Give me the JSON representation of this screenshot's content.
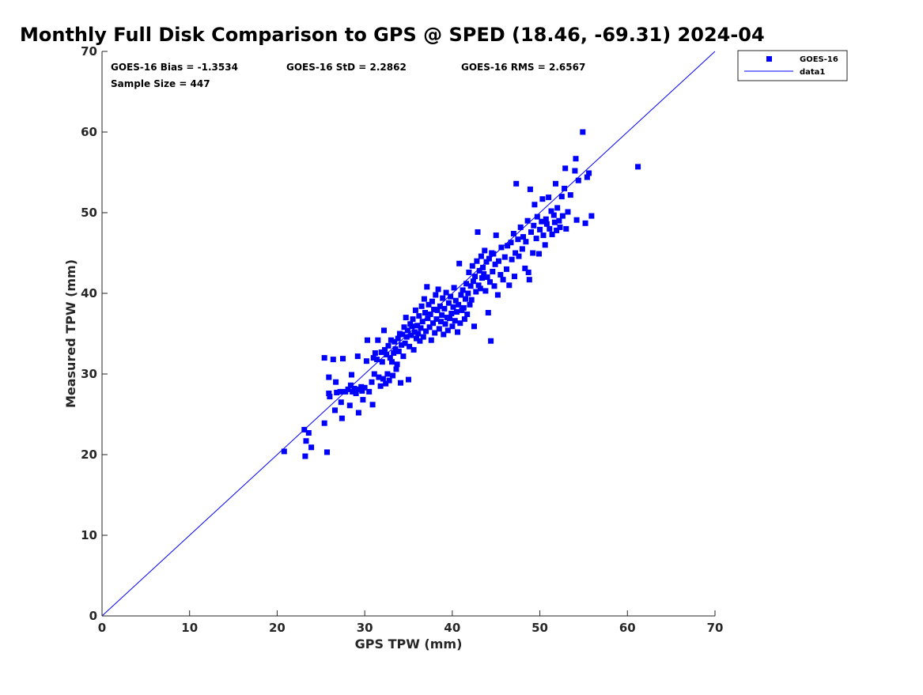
{
  "chart_data": {
    "type": "scatter",
    "title": "Monthly Full Disk Comparison to GPS @ SPED (18.46, -69.31) 2024-04",
    "xlabel": "GPS TPW (mm)",
    "ylabel": "Measured TPW (mm)",
    "xlim": [
      0,
      70
    ],
    "ylim": [
      0,
      70
    ],
    "xticks": [
      0,
      10,
      20,
      30,
      40,
      50,
      60,
      70
    ],
    "yticks": [
      0,
      10,
      20,
      30,
      40,
      50,
      60,
      70
    ],
    "grid": false,
    "legend_position": "top-right outside",
    "annotations": {
      "bias": "GOES-16 Bias = -1.3534",
      "std": "GOES-16 StD = 2.2862",
      "rms": "GOES-16 RMS = 2.6567",
      "sample": "Sample Size = 447"
    },
    "series": [
      {
        "name": "GOES-16",
        "kind": "scatter",
        "marker": "square",
        "color": "#0000ff",
        "points": [
          [
            20.8,
            20.4
          ],
          [
            23.2,
            19.8
          ],
          [
            23.3,
            21.7
          ],
          [
            23.6,
            22.7
          ],
          [
            23.9,
            20.9
          ],
          [
            23.1,
            23.1
          ],
          [
            25.7,
            20.3
          ],
          [
            25.4,
            23.9
          ],
          [
            25.9,
            27.6
          ],
          [
            25.9,
            29.6
          ],
          [
            26.0,
            27.2
          ],
          [
            26.4,
            31.8
          ],
          [
            25.4,
            32.0
          ],
          [
            26.6,
            25.5
          ],
          [
            26.7,
            29.0
          ],
          [
            26.8,
            27.7
          ],
          [
            27.2,
            27.8
          ],
          [
            27.3,
            26.5
          ],
          [
            27.4,
            24.5
          ],
          [
            27.5,
            31.9
          ],
          [
            27.8,
            27.8
          ],
          [
            28.1,
            28.1
          ],
          [
            28.3,
            26.1
          ],
          [
            28.4,
            28.6
          ],
          [
            28.5,
            29.9
          ],
          [
            28.6,
            27.8
          ],
          [
            28.8,
            28.2
          ],
          [
            29.0,
            27.6
          ],
          [
            29.2,
            32.2
          ],
          [
            29.3,
            25.2
          ],
          [
            29.4,
            28.1
          ],
          [
            29.6,
            28.4
          ],
          [
            29.7,
            27.9
          ],
          [
            29.8,
            26.8
          ],
          [
            30.0,
            28.3
          ],
          [
            30.2,
            31.6
          ],
          [
            30.3,
            34.2
          ],
          [
            30.5,
            27.8
          ],
          [
            30.8,
            29.0
          ],
          [
            30.9,
            26.2
          ],
          [
            31.0,
            32.0
          ],
          [
            31.1,
            30.0
          ],
          [
            31.2,
            32.6
          ],
          [
            31.4,
            31.8
          ],
          [
            31.5,
            34.2
          ],
          [
            31.6,
            29.6
          ],
          [
            31.8,
            28.5
          ],
          [
            31.9,
            32.7
          ],
          [
            32.0,
            31.5
          ],
          [
            32.1,
            29.4
          ],
          [
            32.2,
            35.4
          ],
          [
            32.3,
            33.0
          ],
          [
            32.4,
            28.8
          ],
          [
            32.5,
            32.4
          ],
          [
            32.6,
            30.0
          ],
          [
            32.7,
            33.5
          ],
          [
            32.8,
            29.2
          ],
          [
            32.9,
            32.0
          ],
          [
            33.0,
            34.2
          ],
          [
            33.1,
            31.5
          ],
          [
            33.2,
            29.8
          ],
          [
            33.3,
            32.6
          ],
          [
            33.4,
            34.0
          ],
          [
            33.5,
            33.1
          ],
          [
            33.6,
            30.6
          ],
          [
            33.7,
            31.2
          ],
          [
            33.8,
            34.4
          ],
          [
            33.9,
            32.8
          ],
          [
            34.0,
            35.0
          ],
          [
            34.1,
            28.9
          ],
          [
            34.2,
            33.6
          ],
          [
            34.3,
            34.9
          ],
          [
            34.4,
            32.2
          ],
          [
            34.5,
            35.8
          ],
          [
            34.6,
            33.8
          ],
          [
            34.7,
            37.0
          ],
          [
            34.8,
            34.6
          ],
          [
            34.9,
            35.4
          ],
          [
            35.0,
            29.3
          ],
          [
            35.1,
            33.4
          ],
          [
            35.2,
            36.2
          ],
          [
            35.3,
            34.8
          ],
          [
            35.4,
            35.9
          ],
          [
            35.5,
            36.8
          ],
          [
            35.6,
            33.0
          ],
          [
            35.7,
            35.2
          ],
          [
            35.8,
            37.9
          ],
          [
            35.9,
            34.4
          ],
          [
            36.0,
            36.0
          ],
          [
            36.1,
            35.0
          ],
          [
            36.2,
            37.2
          ],
          [
            36.3,
            34.1
          ],
          [
            36.4,
            35.7
          ],
          [
            36.5,
            38.4
          ],
          [
            36.6,
            36.5
          ],
          [
            36.7,
            34.6
          ],
          [
            36.8,
            39.3
          ],
          [
            36.9,
            37.6
          ],
          [
            37.0,
            35.3
          ],
          [
            37.1,
            40.8
          ],
          [
            37.2,
            36.9
          ],
          [
            37.3,
            38.6
          ],
          [
            37.4,
            35.8
          ],
          [
            37.5,
            37.4
          ],
          [
            37.6,
            34.2
          ],
          [
            37.7,
            39.0
          ],
          [
            37.8,
            36.3
          ],
          [
            37.9,
            38.0
          ],
          [
            38.0,
            35.1
          ],
          [
            38.1,
            39.8
          ],
          [
            38.2,
            36.8
          ],
          [
            38.3,
            37.9
          ],
          [
            38.4,
            40.5
          ],
          [
            38.5,
            35.6
          ],
          [
            38.6,
            38.4
          ],
          [
            38.7,
            36.5
          ],
          [
            38.8,
            37.3
          ],
          [
            38.9,
            39.4
          ],
          [
            39.0,
            34.9
          ],
          [
            39.1,
            38.1
          ],
          [
            39.2,
            36.2
          ],
          [
            39.3,
            40.1
          ],
          [
            39.4,
            37.0
          ],
          [
            39.5,
            35.4
          ],
          [
            39.6,
            38.8
          ],
          [
            39.7,
            36.9
          ],
          [
            39.8,
            39.6
          ],
          [
            39.9,
            37.5
          ],
          [
            40.0,
            35.9
          ],
          [
            40.1,
            38.3
          ],
          [
            40.2,
            40.7
          ],
          [
            40.3,
            36.6
          ],
          [
            40.4,
            39.1
          ],
          [
            40.5,
            37.7
          ],
          [
            40.6,
            35.2
          ],
          [
            40.7,
            38.6
          ],
          [
            40.8,
            43.7
          ],
          [
            40.9,
            36.3
          ],
          [
            41.0,
            39.8
          ],
          [
            41.1,
            37.9
          ],
          [
            41.2,
            40.4
          ],
          [
            41.3,
            38.2
          ],
          [
            41.4,
            36.8
          ],
          [
            41.5,
            39.3
          ],
          [
            41.6,
            41.2
          ],
          [
            41.7,
            37.4
          ],
          [
            41.8,
            40.0
          ],
          [
            41.9,
            42.6
          ],
          [
            42.0,
            38.6
          ],
          [
            42.1,
            40.9
          ],
          [
            42.2,
            39.2
          ],
          [
            42.3,
            43.4
          ],
          [
            42.4,
            41.5
          ],
          [
            42.5,
            35.9
          ],
          [
            42.6,
            42.1
          ],
          [
            42.7,
            40.2
          ],
          [
            42.8,
            44.0
          ],
          [
            42.9,
            47.6
          ],
          [
            43.0,
            41.0
          ],
          [
            43.1,
            42.8
          ],
          [
            43.2,
            40.6
          ],
          [
            43.3,
            44.6
          ],
          [
            43.4,
            41.9
          ],
          [
            43.5,
            43.2
          ],
          [
            43.6,
            42.4
          ],
          [
            43.7,
            45.3
          ],
          [
            43.8,
            40.3
          ],
          [
            43.9,
            43.9
          ],
          [
            44.0,
            42.0
          ],
          [
            44.1,
            37.6
          ],
          [
            44.2,
            44.3
          ],
          [
            44.3,
            41.4
          ],
          [
            44.4,
            34.1
          ],
          [
            44.5,
            45.0
          ],
          [
            44.6,
            42.7
          ],
          [
            44.7,
            44.9
          ],
          [
            44.8,
            40.9
          ],
          [
            44.9,
            43.6
          ],
          [
            45.0,
            47.2
          ],
          [
            45.2,
            39.8
          ],
          [
            45.3,
            44.0
          ],
          [
            45.5,
            42.3
          ],
          [
            45.6,
            45.7
          ],
          [
            45.8,
            41.7
          ],
          [
            46.0,
            44.5
          ],
          [
            46.2,
            43.0
          ],
          [
            46.3,
            45.9
          ],
          [
            46.5,
            41.0
          ],
          [
            46.7,
            46.3
          ],
          [
            46.8,
            44.2
          ],
          [
            47.0,
            47.4
          ],
          [
            47.1,
            42.1
          ],
          [
            47.2,
            45.0
          ],
          [
            47.3,
            53.6
          ],
          [
            47.5,
            46.7
          ],
          [
            47.6,
            44.6
          ],
          [
            47.8,
            48.2
          ],
          [
            48.0,
            45.5
          ],
          [
            48.1,
            47.0
          ],
          [
            48.3,
            43.1
          ],
          [
            48.4,
            46.4
          ],
          [
            48.6,
            49.0
          ],
          [
            48.7,
            42.6
          ],
          [
            48.8,
            41.7
          ],
          [
            48.9,
            52.9
          ],
          [
            49.0,
            47.6
          ],
          [
            49.2,
            45.0
          ],
          [
            49.3,
            48.4
          ],
          [
            49.4,
            51.0
          ],
          [
            49.6,
            46.8
          ],
          [
            49.7,
            49.5
          ],
          [
            49.9,
            44.9
          ],
          [
            50.0,
            47.9
          ],
          [
            50.2,
            48.9
          ],
          [
            50.3,
            51.7
          ],
          [
            50.4,
            47.2
          ],
          [
            50.6,
            46.0
          ],
          [
            50.7,
            49.2
          ],
          [
            50.8,
            48.6
          ],
          [
            51.0,
            51.9
          ],
          [
            51.1,
            48.0
          ],
          [
            51.3,
            50.2
          ],
          [
            51.4,
            47.3
          ],
          [
            51.6,
            49.7
          ],
          [
            51.7,
            48.8
          ],
          [
            51.8,
            53.6
          ],
          [
            51.9,
            47.8
          ],
          [
            52.0,
            50.6
          ],
          [
            52.2,
            49.0
          ],
          [
            52.3,
            48.2
          ],
          [
            52.5,
            52.0
          ],
          [
            52.6,
            49.6
          ],
          [
            52.8,
            53.0
          ],
          [
            52.9,
            55.5
          ],
          [
            53.0,
            48.0
          ],
          [
            53.2,
            50.1
          ],
          [
            53.5,
            52.2
          ],
          [
            54.0,
            55.2
          ],
          [
            54.1,
            56.7
          ],
          [
            54.2,
            49.1
          ],
          [
            54.4,
            54.0
          ],
          [
            54.9,
            60.0
          ],
          [
            55.2,
            48.7
          ],
          [
            55.4,
            54.4
          ],
          [
            55.6,
            54.9
          ],
          [
            55.9,
            49.6
          ],
          [
            61.2,
            55.7
          ]
        ]
      },
      {
        "name": "data1",
        "kind": "line",
        "color": "#0000ff",
        "points": [
          [
            0,
            0
          ],
          [
            70,
            70
          ]
        ]
      }
    ]
  }
}
